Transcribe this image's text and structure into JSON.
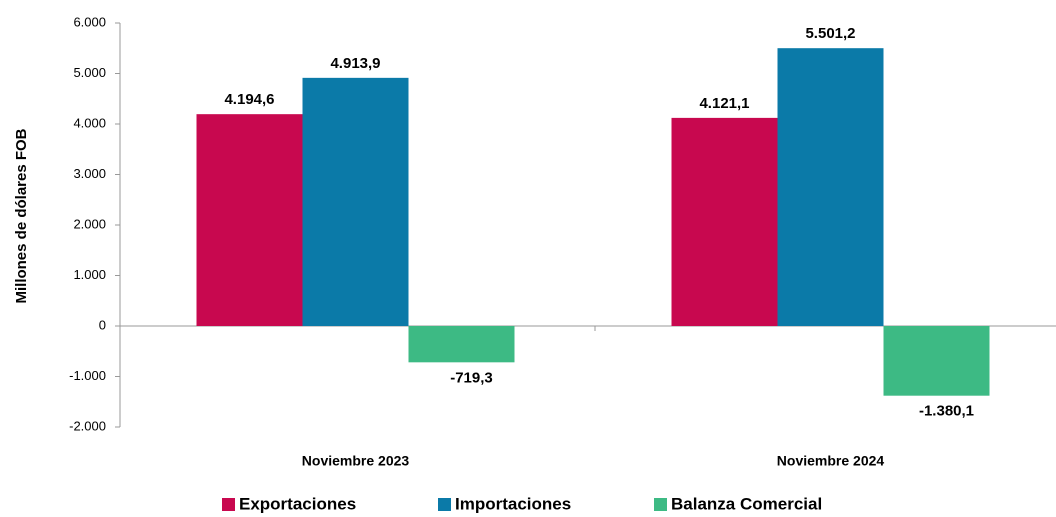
{
  "chart_data": {
    "type": "bar",
    "y_label": "Millones de dólares FOB",
    "categories": [
      "Noviembre 2023",
      "Noviembre 2024"
    ],
    "series": [
      {
        "name": "Exportaciones",
        "color": "#c8084f",
        "values": [
          4194.6,
          4121.1
        ],
        "value_labels": [
          "4.194,6",
          "4.121,1"
        ]
      },
      {
        "name": "Importaciones",
        "color": "#0b7aa8",
        "values": [
          4913.9,
          5501.2
        ],
        "value_labels": [
          "4.913,9",
          "5.501,2"
        ]
      },
      {
        "name": "Balanza Comercial",
        "color": "#3dba84",
        "values": [
          -719.3,
          -1380.1
        ],
        "value_labels": [
          "-719,3",
          "-1.380,1"
        ]
      }
    ],
    "ylim": [
      -2000,
      6000
    ],
    "yticks": [
      {
        "value": -2000,
        "label": "-2.000"
      },
      {
        "value": -1000,
        "label": "-1.000"
      },
      0,
      {
        "value": 1000,
        "label": "1.000"
      },
      {
        "value": 2000,
        "label": "2.000"
      },
      {
        "value": 3000,
        "label": "3.000"
      },
      {
        "value": 4000,
        "label": "4.000"
      },
      {
        "value": 5000,
        "label": "5.000"
      },
      {
        "value": 6000,
        "label": "6.000"
      }
    ],
    "legend": "bottom"
  }
}
